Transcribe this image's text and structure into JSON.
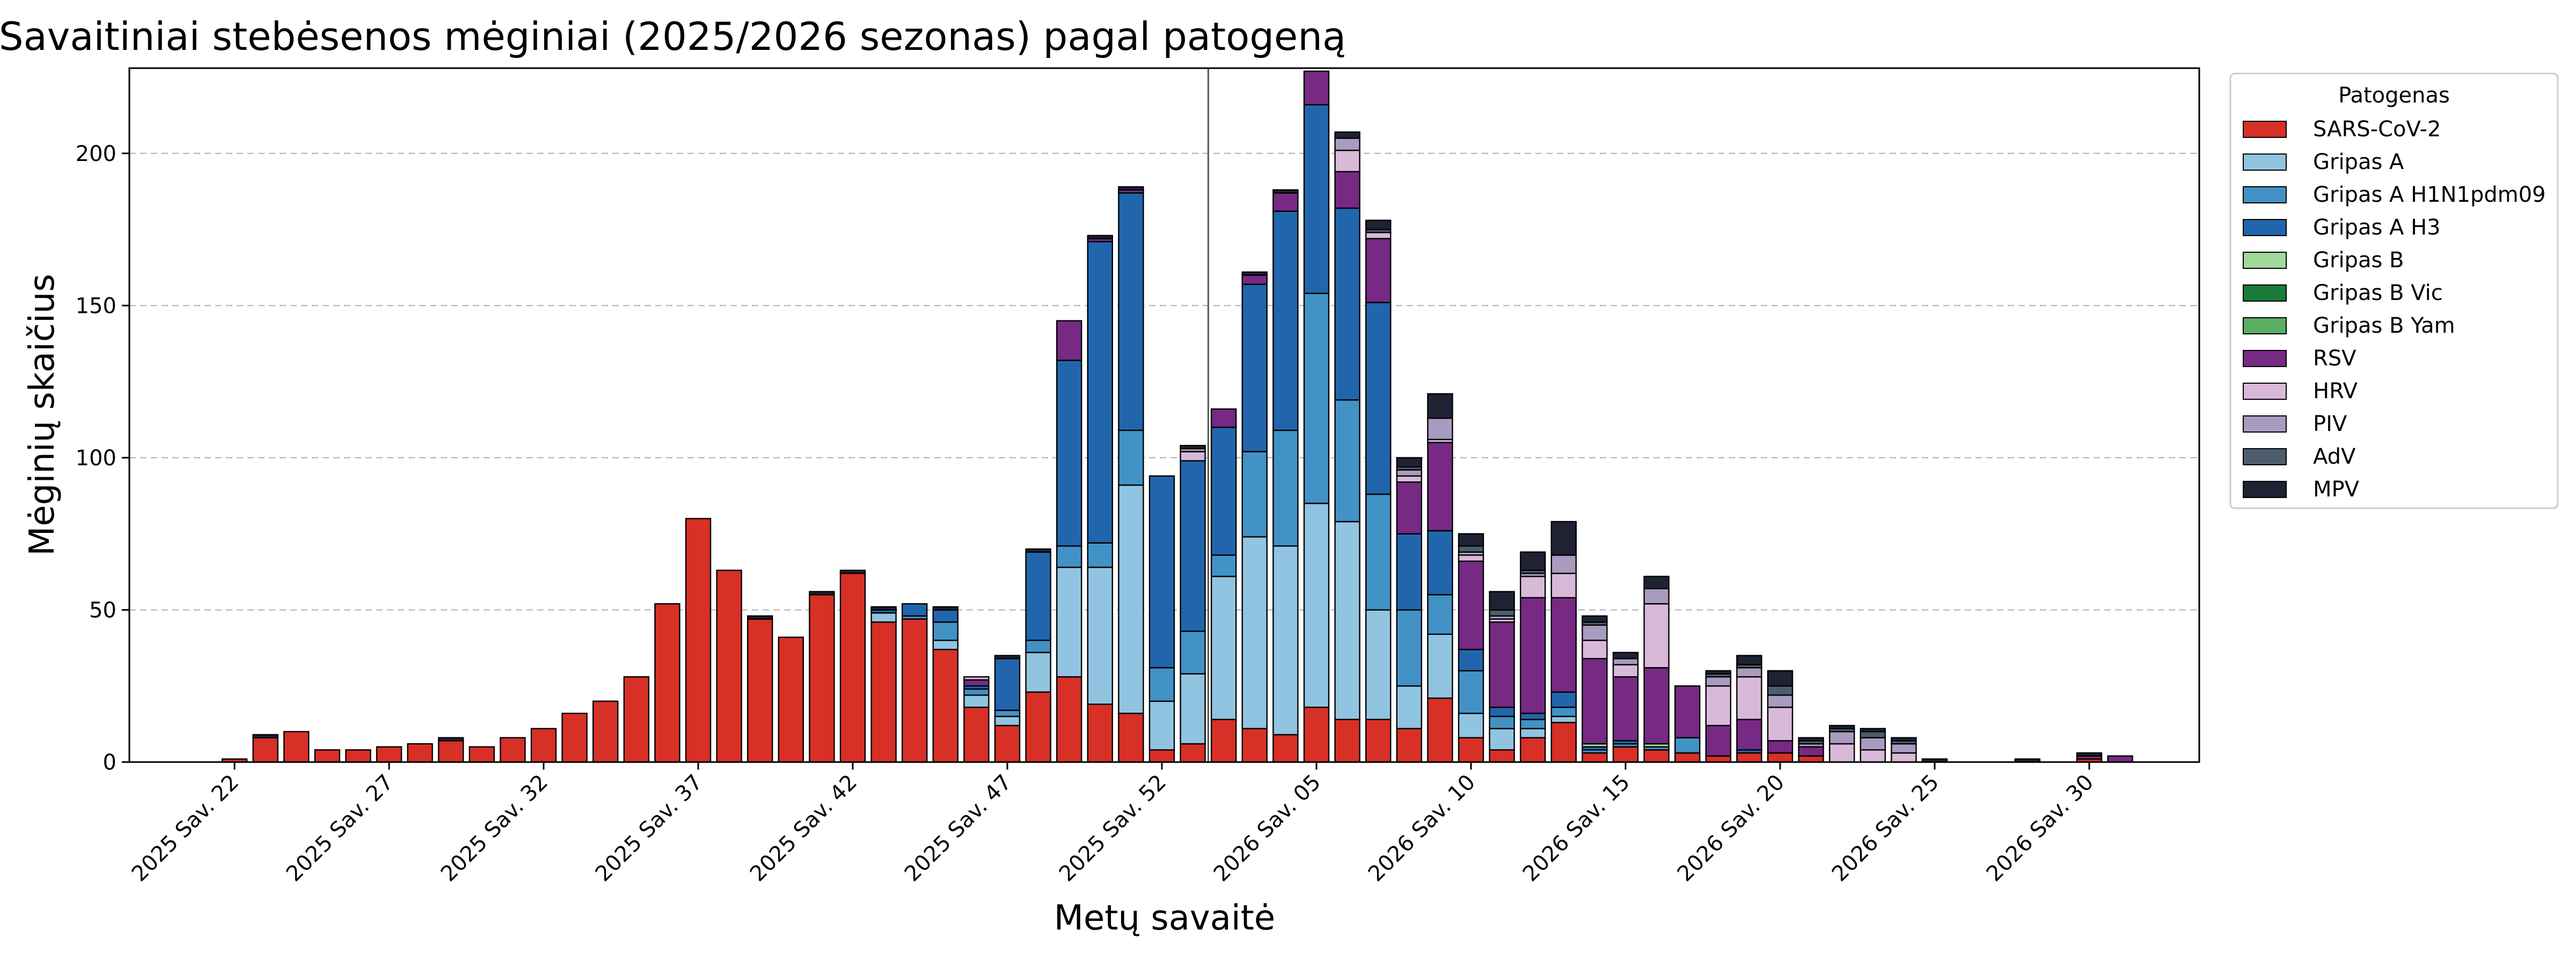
{
  "chart_data": {
    "type": "bar",
    "stacked": true,
    "title": "Savaitiniai stebėsenos mėginiai (2025/2026 sezonas) pagal patogeną",
    "xlabel": "Metų savaitė",
    "ylabel": "Mėginių skaičius",
    "ylim": [
      0,
      228
    ],
    "yticks": [
      0,
      50,
      100,
      150,
      200
    ],
    "grid": "horizontal-dashed",
    "legend": {
      "title": "Patogenas",
      "placement": "outside-right-top"
    },
    "season_marker_index": 32,
    "categories": [
      "2025 Sav. 22",
      "2025 Sav. 23",
      "2025 Sav. 24",
      "2025 Sav. 25",
      "2025 Sav. 26",
      "2025 Sav. 27",
      "2025 Sav. 28",
      "2025 Sav. 29",
      "2025 Sav. 30",
      "2025 Sav. 31",
      "2025 Sav. 32",
      "2025 Sav. 33",
      "2025 Sav. 34",
      "2025 Sav. 35",
      "2025 Sav. 36",
      "2025 Sav. 37",
      "2025 Sav. 38",
      "2025 Sav. 39",
      "2025 Sav. 40",
      "2025 Sav. 41",
      "2025 Sav. 42",
      "2025 Sav. 43",
      "2025 Sav. 44",
      "2025 Sav. 45",
      "2025 Sav. 46",
      "2025 Sav. 47",
      "2025 Sav. 48",
      "2025 Sav. 49",
      "2025 Sav. 50",
      "2025 Sav. 51",
      "2025 Sav. 52",
      "2026 Sav. 01",
      "2026 Sav. 02",
      "2026 Sav. 03",
      "2026 Sav. 04",
      "2026 Sav. 05",
      "2026 Sav. 06",
      "2026 Sav. 07",
      "2026 Sav. 08",
      "2026 Sav. 09",
      "2026 Sav. 10",
      "2026 Sav. 11",
      "2026 Sav. 12",
      "2026 Sav. 13",
      "2026 Sav. 14",
      "2026 Sav. 15",
      "2026 Sav. 16",
      "2026 Sav. 17",
      "2026 Sav. 18",
      "2026 Sav. 19",
      "2026 Sav. 20",
      "2026 Sav. 21",
      "2026 Sav. 22",
      "2026 Sav. 23",
      "2026 Sav. 24",
      "2026 Sav. 25",
      "2026 Sav. 26",
      "2026 Sav. 27",
      "2026 Sav. 28",
      "2026 Sav. 29",
      "2026 Sav. 30",
      "2026 Sav. 31"
    ],
    "tick_labels": [
      {
        "index": 0,
        "label": "2025 Sav. 22"
      },
      {
        "index": 5,
        "label": "2025 Sav. 27"
      },
      {
        "index": 10,
        "label": "2025 Sav. 32"
      },
      {
        "index": 15,
        "label": "2025 Sav. 37"
      },
      {
        "index": 20,
        "label": "2025 Sav. 42"
      },
      {
        "index": 25,
        "label": "2025 Sav. 47"
      },
      {
        "index": 30,
        "label": "2025 Sav. 52"
      },
      {
        "index": 35,
        "label": "2026 Sav. 05"
      },
      {
        "index": 40,
        "label": "2026 Sav. 10"
      },
      {
        "index": 45,
        "label": "2026 Sav. 15"
      },
      {
        "index": 50,
        "label": "2026 Sav. 20"
      },
      {
        "index": 55,
        "label": "2026 Sav. 25"
      },
      {
        "index": 60,
        "label": "2026 Sav. 30"
      }
    ],
    "series": [
      {
        "name": "SARS-CoV-2",
        "color": "#d73027",
        "values": [
          1,
          8,
          10,
          4,
          4,
          5,
          6,
          7,
          5,
          8,
          11,
          16,
          20,
          28,
          52,
          80,
          63,
          47,
          41,
          55,
          62,
          46,
          47,
          37,
          18,
          12,
          23,
          28,
          19,
          16,
          4,
          6,
          14,
          11,
          9,
          18,
          14,
          14,
          11,
          21,
          8,
          4,
          8,
          13,
          3,
          5,
          4,
          3,
          2,
          3,
          3,
          2,
          0,
          0,
          0,
          0,
          0,
          0,
          0,
          0,
          1,
          0
        ]
      },
      {
        "name": "Gripas A",
        "color": "#91c4e0",
        "values": [
          0,
          0,
          0,
          0,
          0,
          0,
          0,
          0,
          0,
          0,
          0,
          0,
          0,
          0,
          0,
          0,
          0,
          0,
          0,
          0,
          0,
          3,
          0,
          3,
          4,
          3,
          13,
          36,
          45,
          75,
          16,
          23,
          47,
          63,
          62,
          67,
          65,
          36,
          14,
          21,
          8,
          7,
          3,
          2,
          0,
          0,
          0,
          0,
          0,
          0,
          0,
          0,
          0,
          0,
          0,
          0,
          0,
          0,
          0,
          0,
          0,
          0
        ]
      },
      {
        "name": "Gripas A H1N1pdm09",
        "color": "#4292c6",
        "values": [
          0,
          0,
          0,
          0,
          0,
          0,
          0,
          0,
          0,
          0,
          0,
          0,
          0,
          0,
          0,
          0,
          0,
          0,
          0,
          0,
          0,
          0,
          1,
          6,
          2,
          2,
          4,
          7,
          8,
          18,
          11,
          14,
          7,
          28,
          38,
          69,
          40,
          38,
          25,
          13,
          14,
          4,
          3,
          3,
          1,
          1,
          1,
          5,
          0,
          0,
          0,
          0,
          0,
          0,
          0,
          0,
          0,
          0,
          0,
          0,
          0,
          0
        ]
      },
      {
        "name": "Gripas A H3",
        "color": "#2166ac",
        "values": [
          0,
          0,
          0,
          0,
          0,
          0,
          0,
          0,
          0,
          0,
          0,
          0,
          0,
          0,
          0,
          0,
          0,
          0,
          0,
          0,
          0,
          1,
          4,
          4,
          1,
          17,
          29,
          61,
          99,
          78,
          63,
          56,
          42,
          55,
          72,
          62,
          63,
          63,
          25,
          21,
          7,
          3,
          2,
          5,
          1,
          1,
          0,
          0,
          0,
          1,
          0,
          0,
          0,
          0,
          0,
          0,
          0,
          0,
          0,
          0,
          0,
          0
        ]
      },
      {
        "name": "Gripas B",
        "color": "#a1d99b",
        "values": [
          0,
          0,
          0,
          0,
          0,
          0,
          0,
          0,
          0,
          0,
          0,
          0,
          0,
          0,
          0,
          0,
          0,
          0,
          0,
          0,
          0,
          0,
          0,
          0,
          0,
          0,
          0,
          0,
          0,
          0,
          0,
          0,
          0,
          0,
          0,
          0,
          0,
          0,
          0,
          0,
          0,
          0,
          0,
          0,
          1,
          0,
          1,
          0,
          0,
          0,
          0,
          0,
          0,
          0,
          0,
          0,
          0,
          0,
          0,
          0,
          0,
          0
        ]
      },
      {
        "name": "Gripas B Vic",
        "color": "#1a7a3a",
        "values": [
          0,
          0,
          0,
          0,
          0,
          0,
          0,
          0,
          0,
          0,
          0,
          0,
          0,
          0,
          0,
          0,
          0,
          0,
          0,
          0,
          0,
          0,
          0,
          0,
          0,
          0,
          0,
          0,
          0,
          0,
          0,
          0,
          0,
          0,
          0,
          0,
          0,
          0,
          0,
          0,
          0,
          0,
          0,
          0,
          0,
          0,
          0,
          0,
          0,
          0,
          0,
          0,
          0,
          0,
          0,
          0,
          0,
          0,
          0,
          0,
          0,
          0
        ]
      },
      {
        "name": "Gripas B Yam",
        "color": "#5aae61",
        "values": [
          0,
          0,
          0,
          0,
          0,
          0,
          0,
          0,
          0,
          0,
          0,
          0,
          0,
          0,
          0,
          0,
          0,
          0,
          0,
          0,
          0,
          0,
          0,
          0,
          0,
          0,
          0,
          0,
          0,
          0,
          0,
          0,
          0,
          0,
          0,
          0,
          0,
          0,
          0,
          0,
          0,
          0,
          0,
          0,
          0,
          0,
          0,
          0,
          0,
          0,
          0,
          0,
          0,
          0,
          0,
          0,
          0,
          0,
          0,
          0,
          0,
          0
        ]
      },
      {
        "name": "RSV",
        "color": "#762a83",
        "values": [
          0,
          0,
          0,
          0,
          0,
          0,
          0,
          0,
          0,
          0,
          0,
          0,
          0,
          0,
          0,
          0,
          0,
          0,
          0,
          0,
          0,
          0,
          0,
          0,
          2,
          0,
          0,
          13,
          1,
          1,
          0,
          0,
          6,
          3,
          6,
          11,
          12,
          21,
          17,
          29,
          29,
          28,
          38,
          31,
          28,
          21,
          25,
          17,
          10,
          10,
          4,
          3,
          0,
          0,
          0,
          0,
          0,
          0,
          0,
          0,
          1,
          2
        ]
      },
      {
        "name": "HRV",
        "color": "#d8b9d8",
        "values": [
          0,
          0,
          0,
          0,
          0,
          0,
          0,
          0,
          0,
          0,
          0,
          0,
          0,
          0,
          0,
          0,
          0,
          0,
          0,
          0,
          0,
          0,
          0,
          0,
          1,
          0,
          0,
          0,
          0,
          0,
          0,
          3,
          0,
          0,
          0,
          0,
          7,
          2,
          2,
          1,
          2,
          1,
          7,
          8,
          6,
          4,
          21,
          0,
          13,
          14,
          11,
          0,
          6,
          4,
          3,
          0,
          0,
          0,
          0,
          0,
          0,
          0
        ]
      },
      {
        "name": "PIV",
        "color": "#a99bbf",
        "values": [
          0,
          0,
          0,
          0,
          0,
          0,
          0,
          0,
          0,
          0,
          0,
          0,
          0,
          0,
          0,
          0,
          0,
          0,
          0,
          0,
          0,
          0,
          0,
          0,
          0,
          0,
          0,
          0,
          0,
          0,
          0,
          1,
          0,
          0,
          0,
          0,
          4,
          0,
          2,
          7,
          1,
          1,
          1,
          6,
          5,
          2,
          5,
          0,
          3,
          3,
          4,
          1,
          4,
          4,
          3,
          0,
          0,
          0,
          0,
          0,
          0,
          0
        ]
      },
      {
        "name": "AdV",
        "color": "#4d5d6b",
        "values": [
          0,
          0,
          0,
          0,
          0,
          0,
          0,
          0,
          0,
          0,
          0,
          0,
          0,
          0,
          0,
          0,
          0,
          0,
          0,
          0,
          0,
          0,
          0,
          0,
          0,
          0,
          0,
          0,
          0,
          0,
          0,
          0,
          0,
          0,
          0,
          0,
          0,
          1,
          1,
          0,
          2,
          2,
          1,
          0,
          1,
          0,
          0,
          0,
          1,
          1,
          3,
          1,
          1,
          2,
          1,
          0,
          0,
          0,
          0,
          0,
          0,
          0
        ]
      },
      {
        "name": "MPV",
        "color": "#1f2233",
        "values": [
          0,
          1,
          0,
          0,
          0,
          0,
          0,
          1,
          0,
          0,
          0,
          0,
          0,
          0,
          0,
          0,
          0,
          1,
          0,
          1,
          1,
          1,
          0,
          1,
          0,
          1,
          1,
          0,
          1,
          1,
          0,
          1,
          0,
          1,
          1,
          0,
          2,
          3,
          3,
          8,
          4,
          6,
          6,
          11,
          2,
          2,
          4,
          0,
          1,
          3,
          5,
          1,
          1,
          1,
          1,
          1,
          0,
          0,
          1,
          0,
          1,
          0
        ]
      }
    ]
  }
}
